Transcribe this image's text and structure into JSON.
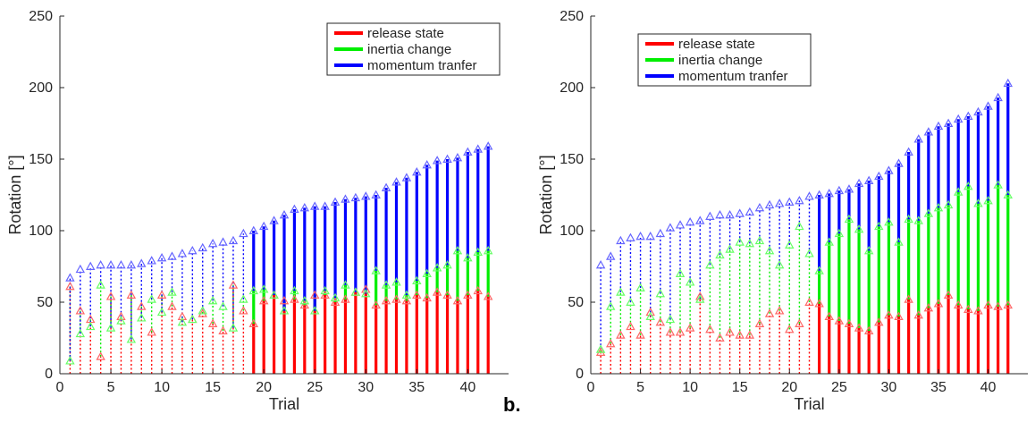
{
  "panel_label": "b.",
  "colors": {
    "release_state": "#ff0000",
    "inertia_change": "#00ee00",
    "momentum_transfer": "#0000ff",
    "release_marker": "#ff6666",
    "inertia_marker": "#66ff66",
    "momentum_marker": "#6666ff",
    "axis": "#262626"
  },
  "chart_data": [
    {
      "type": "bar",
      "subtype": "stacked range segments (floating bars) with triangle markers; dotted segments denote the three components in some trials",
      "xlabel": "Trial",
      "ylabel": "Rotation [°]",
      "xlim": [
        0,
        44
      ],
      "ylim": [
        0,
        250
      ],
      "xticks": [
        0,
        5,
        10,
        15,
        20,
        25,
        30,
        35,
        40
      ],
      "yticks": [
        0,
        50,
        100,
        150,
        200,
        250
      ],
      "grid": false,
      "legend": {
        "placement": "top-right",
        "entries": [
          "release state",
          "inertia change",
          "momentum tranfer"
        ]
      },
      "x": [
        1,
        2,
        3,
        4,
        5,
        6,
        7,
        8,
        9,
        10,
        11,
        12,
        13,
        14,
        15,
        16,
        17,
        18,
        19,
        20,
        21,
        22,
        23,
        24,
        25,
        26,
        27,
        28,
        29,
        30,
        31,
        32,
        33,
        34,
        35,
        36,
        37,
        38,
        39,
        40,
        41,
        42
      ],
      "series": [
        {
          "name": "release state",
          "color_key": "release_state",
          "values": [
            61,
            44,
            38,
            12,
            54,
            40,
            55,
            47,
            29,
            55,
            47,
            40,
            38,
            42,
            35,
            30,
            62,
            44,
            35,
            51,
            55,
            51,
            52,
            48,
            55,
            55,
            50,
            52,
            57,
            59,
            48,
            51,
            52,
            51,
            55,
            53,
            57,
            55,
            51,
            55,
            58,
            54
          ]
        },
        {
          "name": "inertia change",
          "color_key": "inertia_change",
          "values": [
            9,
            28,
            33,
            62,
            32,
            37,
            24,
            39,
            52,
            43,
            57,
            36,
            38,
            44,
            51,
            47,
            32,
            52,
            58,
            59,
            55,
            44,
            58,
            51,
            44,
            58,
            53,
            62,
            57,
            56,
            72,
            62,
            64,
            55,
            65,
            70,
            74,
            76,
            86,
            81,
            85,
            86
          ]
        },
        {
          "name": "momentum tranfer",
          "color_key": "momentum_transfer",
          "values": [
            67,
            73,
            75,
            76,
            76,
            76,
            76,
            77,
            79,
            81,
            82,
            84,
            86,
            88,
            91,
            92,
            93,
            98,
            100,
            103,
            107,
            111,
            115,
            116,
            117,
            117,
            120,
            122,
            123,
            124,
            125,
            130,
            134,
            137,
            141,
            146,
            149,
            150,
            151,
            155,
            157,
            159
          ]
        }
      ],
      "solid_from_trial": {
        "release state": 19,
        "inertia change": 19,
        "momentum tranfer": 19
      }
    },
    {
      "type": "bar",
      "subtype": "stacked range segments (floating bars) with triangle markers; dotted segments denote the three components in some trials",
      "xlabel": "Trial",
      "ylabel": "Rotation [°]",
      "xlim": [
        0,
        44
      ],
      "ylim": [
        0,
        250
      ],
      "xticks": [
        0,
        5,
        10,
        15,
        20,
        25,
        30,
        35,
        40
      ],
      "yticks": [
        0,
        50,
        100,
        150,
        200,
        250
      ],
      "grid": false,
      "legend": {
        "placement": "top-left",
        "entries": [
          "release state",
          "inertia change",
          "momentum tranfer"
        ]
      },
      "x": [
        1,
        2,
        3,
        4,
        5,
        6,
        7,
        8,
        9,
        10,
        11,
        12,
        13,
        14,
        15,
        16,
        17,
        18,
        19,
        20,
        21,
        22,
        23,
        24,
        25,
        26,
        27,
        28,
        29,
        30,
        31,
        32,
        33,
        34,
        35,
        36,
        37,
        38,
        39,
        40,
        41,
        42
      ],
      "series": [
        {
          "name": "release state",
          "color_key": "release_state",
          "values": [
            15,
            21,
            27,
            33,
            27,
            43,
            36,
            29,
            29,
            32,
            54,
            31,
            25,
            29,
            27,
            27,
            35,
            42,
            44,
            31,
            35,
            50,
            49,
            40,
            37,
            35,
            32,
            30,
            36,
            41,
            40,
            52,
            41,
            46,
            49,
            55,
            48,
            45,
            44,
            48,
            47,
            48
          ]
        },
        {
          "name": "inertia change",
          "color_key": "inertia_change",
          "values": [
            17,
            47,
            57,
            50,
            60,
            40,
            56,
            38,
            70,
            64,
            52,
            76,
            83,
            87,
            92,
            91,
            93,
            86,
            76,
            90,
            103,
            84,
            72,
            92,
            98,
            108,
            101,
            86,
            103,
            106,
            92,
            108,
            107,
            112,
            116,
            118,
            127,
            131,
            119,
            121,
            132,
            125
          ]
        },
        {
          "name": "momentum tranfer",
          "color_key": "momentum_transfer",
          "values": [
            76,
            82,
            93,
            95,
            96,
            96,
            98,
            102,
            104,
            106,
            107,
            110,
            111,
            111,
            112,
            113,
            116,
            118,
            119,
            120,
            121,
            124,
            125,
            126,
            128,
            129,
            133,
            135,
            138,
            142,
            147,
            155,
            164,
            169,
            173,
            175,
            178,
            180,
            183,
            187,
            193,
            203
          ]
        }
      ],
      "solid_from_trial": {
        "release state": 23,
        "inertia change": 23,
        "momentum tranfer": 23
      }
    }
  ]
}
